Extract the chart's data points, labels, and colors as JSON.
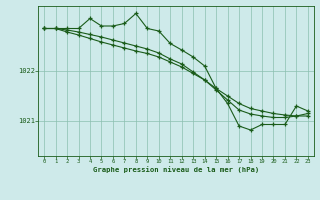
{
  "title": "Graphe pression niveau de la mer (hPa)",
  "background_color": "#ceeaea",
  "grid_color": "#8bbfb0",
  "line_color": "#1a5c1a",
  "xlim": [
    -0.5,
    23.5
  ],
  "ylim": [
    1020.3,
    1023.3
  ],
  "yticks": [
    1021,
    1022
  ],
  "xticks": [
    0,
    1,
    2,
    3,
    4,
    5,
    6,
    7,
    8,
    9,
    10,
    11,
    12,
    13,
    14,
    15,
    16,
    17,
    18,
    19,
    20,
    21,
    22,
    23
  ],
  "series1_x": [
    0,
    1,
    2,
    3,
    4,
    5,
    6,
    7,
    8,
    9,
    10,
    11,
    12,
    13,
    14,
    15,
    16,
    17,
    18,
    19,
    20,
    21,
    22,
    23
  ],
  "series1_y": [
    1022.85,
    1022.85,
    1022.85,
    1022.85,
    1023.05,
    1022.9,
    1022.9,
    1022.95,
    1023.15,
    1022.85,
    1022.8,
    1022.55,
    1022.42,
    1022.28,
    1022.1,
    1021.65,
    1021.35,
    1020.9,
    1020.82,
    1020.93,
    1020.93,
    1020.93,
    1021.3,
    1021.2
  ],
  "series2_x": [
    0,
    1,
    2,
    3,
    4,
    5,
    6,
    7,
    8,
    9,
    10,
    11,
    12,
    13,
    14,
    15,
    16,
    17,
    18,
    19,
    20,
    21,
    22,
    23
  ],
  "series2_y": [
    1022.85,
    1022.85,
    1022.78,
    1022.72,
    1022.65,
    1022.58,
    1022.52,
    1022.46,
    1022.4,
    1022.35,
    1022.28,
    1022.18,
    1022.08,
    1021.95,
    1021.82,
    1021.65,
    1021.5,
    1021.35,
    1021.25,
    1021.2,
    1021.15,
    1021.12,
    1021.1,
    1021.1
  ],
  "series3_x": [
    0,
    1,
    2,
    3,
    4,
    5,
    6,
    7,
    8,
    9,
    10,
    11,
    12,
    13,
    14,
    15,
    16,
    17,
    18,
    19,
    20,
    21,
    22,
    23
  ],
  "series3_y": [
    1022.85,
    1022.85,
    1022.82,
    1022.78,
    1022.73,
    1022.68,
    1022.62,
    1022.56,
    1022.5,
    1022.44,
    1022.36,
    1022.24,
    1022.14,
    1021.98,
    1021.82,
    1021.62,
    1021.42,
    1021.22,
    1021.14,
    1021.1,
    1021.07,
    1021.07,
    1021.1,
    1021.15
  ]
}
